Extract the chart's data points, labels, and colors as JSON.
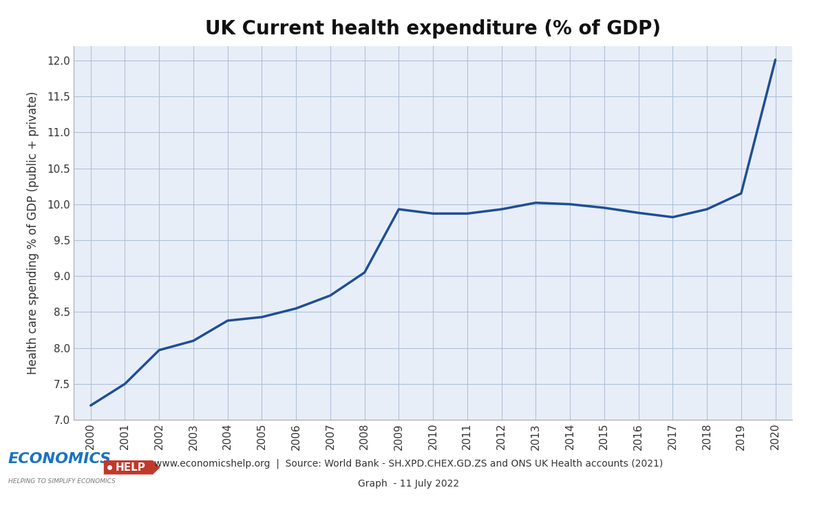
{
  "title": "UK Current health expenditure (% of GDP)",
  "ylabel": "Health care spending % of GDP (public + private)",
  "years": [
    2000,
    2001,
    2002,
    2003,
    2004,
    2005,
    2006,
    2007,
    2008,
    2009,
    2010,
    2011,
    2012,
    2013,
    2014,
    2015,
    2016,
    2017,
    2018,
    2019,
    2020
  ],
  "values": [
    7.2,
    7.5,
    7.97,
    8.1,
    8.38,
    8.43,
    8.55,
    8.73,
    9.05,
    9.93,
    9.87,
    9.87,
    9.93,
    10.02,
    10.0,
    9.95,
    9.88,
    9.82,
    9.93,
    10.15,
    12.01
  ],
  "line_color": "#1f4e96",
  "line_width": 2.5,
  "ylim": [
    7.0,
    12.2
  ],
  "yticks": [
    7.0,
    7.5,
    8.0,
    8.5,
    9.0,
    9.5,
    10.0,
    10.5,
    11.0,
    11.5,
    12.0
  ],
  "bg_color": "#ffffff",
  "plot_bg_color": "#e8eef8",
  "grid_color": "#b0c0d8",
  "title_fontsize": 20,
  "label_fontsize": 12,
  "tick_fontsize": 11,
  "footer_line1": "www.economicshelp.org  |  Source: World Bank - SH.XPD.CHEX.GD.ZS and ONS UK Health accounts (2021)",
  "footer_line2": "Graph  - 11 July 2022",
  "logo_economics_color": "#1a72c4",
  "logo_help_bg": "#c0392b",
  "logo_sub": "HELPING TO SIMPLIFY ECONOMICS"
}
